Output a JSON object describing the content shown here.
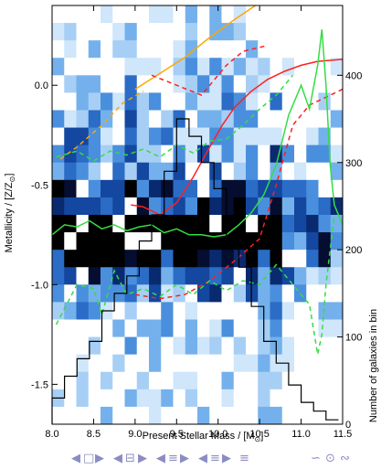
{
  "chart_data": {
    "type": "heatmap",
    "xlabel": "Present Stellar Mass / [M",
    "xlabel_sub": "⊙",
    "xlabel_end": "]",
    "ylabel": "Metallicity / [Z/Z",
    "ylabel_sub": "⊙",
    "ylabel_end": "]",
    "y2label": "Number of galaxies in bin",
    "xlim": [
      8.0,
      11.5
    ],
    "ylim": [
      -1.7,
      0.4
    ],
    "y2lim": [
      0,
      480
    ],
    "xticks": [
      "8.0",
      "8.5",
      "9.0",
      "9.5",
      "10.0",
      "10.5",
      "11.0",
      "11.5"
    ],
    "xtick_values": [
      8.0,
      8.5,
      9.0,
      9.5,
      10.0,
      10.5,
      11.0,
      11.5
    ],
    "yticks": [
      "0.0",
      "-0.5",
      "-1.0",
      "-1.5"
    ],
    "ytick_values": [
      0.0,
      -0.5,
      -1.0,
      -1.5
    ],
    "y2ticks": [
      "0",
      "100",
      "200",
      "300",
      "400"
    ],
    "y2tick_values": [
      0,
      100,
      200,
      300,
      400
    ],
    "heatmap": {
      "x_edges": [
        8.0,
        11.5
      ],
      "y_edges": [
        -1.7,
        0.4
      ],
      "nx": 24,
      "ny": 24,
      "seed": 7,
      "palette": [
        "#ffffff",
        "#cfe6fb",
        "#a7cff5",
        "#74b1ec",
        "#4a8fdd",
        "#2a6cc6",
        "#14479f",
        "#0a2a70",
        "#050e30",
        "#000000"
      ]
    },
    "series": [
      {
        "name": "",
        "color": "#ffa500",
        "dash": false,
        "x": [
          9.0,
          9.3,
          9.6,
          9.9,
          10.2,
          10.45
        ],
        "y": [
          -0.02,
          0.06,
          0.14,
          0.24,
          0.33,
          0.4
        ]
      },
      {
        "name": "",
        "color": "#ffa500",
        "dash": true,
        "x": [
          8.1,
          8.3,
          8.6,
          8.85,
          9.1
        ],
        "y": [
          -0.37,
          -0.31,
          -0.2,
          -0.09,
          -0.03
        ]
      },
      {
        "name": "",
        "color": "#ff2020",
        "dash": false,
        "x": [
          8.95,
          9.1,
          9.3,
          9.5,
          9.7,
          9.9,
          10.05,
          10.2,
          10.4,
          10.6,
          10.8,
          11.0,
          11.2,
          11.5
        ],
        "y": [
          -0.6,
          -0.61,
          -0.65,
          -0.59,
          -0.46,
          -0.31,
          -0.2,
          -0.11,
          -0.03,
          0.03,
          0.07,
          0.1,
          0.12,
          0.13
        ]
      },
      {
        "name": "",
        "color": "#ff2020",
        "dash": true,
        "x": [
          9.2,
          9.5,
          9.8,
          10.1,
          10.3,
          10.6
        ],
        "y": [
          0.05,
          0.0,
          -0.05,
          0.1,
          0.17,
          0.2
        ]
      },
      {
        "name": "",
        "color": "#ff2020",
        "dash": true,
        "x": [
          9.0,
          9.3,
          9.6,
          9.9,
          10.2,
          10.5,
          10.7,
          10.9,
          11.1,
          11.3,
          11.5
        ],
        "y": [
          -1.05,
          -1.07,
          -1.05,
          -0.98,
          -0.88,
          -0.77,
          -0.5,
          -0.2,
          -0.1,
          -0.06,
          -0.02
        ]
      },
      {
        "name": "",
        "color": "#33dd44",
        "dash": false,
        "x": [
          8.0,
          8.15,
          8.3,
          8.45,
          8.6,
          8.75,
          8.9,
          9.05,
          9.2,
          9.35,
          9.5,
          9.65,
          9.8,
          9.95,
          10.1,
          10.25,
          10.4,
          10.55,
          10.7,
          10.85,
          11.0,
          11.1,
          11.2,
          11.25,
          11.3,
          11.35,
          11.4,
          11.5
        ],
        "y": [
          -0.75,
          -0.7,
          -0.71,
          -0.68,
          -0.72,
          -0.7,
          -0.73,
          -0.71,
          -0.7,
          -0.74,
          -0.72,
          -0.75,
          -0.75,
          -0.76,
          -0.75,
          -0.7,
          -0.64,
          -0.55,
          -0.4,
          -0.15,
          0.0,
          -0.12,
          0.1,
          0.28,
          0.0,
          -0.4,
          -0.6,
          -0.7
        ]
      },
      {
        "name": "",
        "color": "#33dd44",
        "dash": true,
        "x": [
          8.05,
          8.3,
          8.5,
          8.7,
          8.9,
          9.1,
          9.3,
          9.5,
          9.7,
          9.9,
          10.1,
          10.3,
          10.5,
          10.7,
          10.9
        ],
        "y": [
          -0.36,
          -0.33,
          -0.38,
          -0.33,
          -0.35,
          -0.32,
          -0.36,
          -0.3,
          -0.34,
          -0.28,
          -0.27,
          -0.2,
          -0.12,
          -0.05,
          0.05
        ]
      },
      {
        "name": "",
        "color": "#33dd44",
        "dash": true,
        "x": [
          8.05,
          8.3,
          8.5,
          8.6,
          8.75,
          8.9,
          9.1,
          9.3,
          9.5,
          9.7,
          9.9,
          10.1,
          10.3,
          10.5,
          10.7,
          10.9,
          11.1,
          11.2,
          11.25,
          11.3,
          11.4
        ],
        "y": [
          -1.2,
          -1.0,
          -1.02,
          -1.15,
          -0.93,
          -1.05,
          -1.02,
          -1.06,
          -1.0,
          -1.05,
          -0.98,
          -1.03,
          -0.98,
          -1.0,
          -0.9,
          -1.0,
          -1.1,
          -1.35,
          -1.25,
          -1.0,
          -0.65
        ]
      }
    ],
    "histogram": {
      "color": "#000000",
      "bin_width": 0.15,
      "x": [
        8.0,
        8.15,
        8.3,
        8.45,
        8.6,
        8.75,
        8.9,
        9.05,
        9.2,
        9.35,
        9.5,
        9.65,
        9.8,
        9.95,
        10.1,
        10.25,
        10.4,
        10.55,
        10.7,
        10.85,
        11.0,
        11.15,
        11.3
      ],
      "counts": [
        30,
        55,
        75,
        95,
        130,
        150,
        170,
        210,
        240,
        290,
        350,
        330,
        300,
        270,
        210,
        180,
        135,
        95,
        70,
        45,
        25,
        15,
        5
      ]
    }
  },
  "navigation": {
    "icons": [
      "◀",
      "□",
      "▶",
      "◀",
      "⊟",
      "▶",
      "◀",
      "≡",
      "▶",
      "◀",
      "≡",
      "▶",
      "≡",
      "∽",
      "⊙",
      "∾"
    ]
  }
}
